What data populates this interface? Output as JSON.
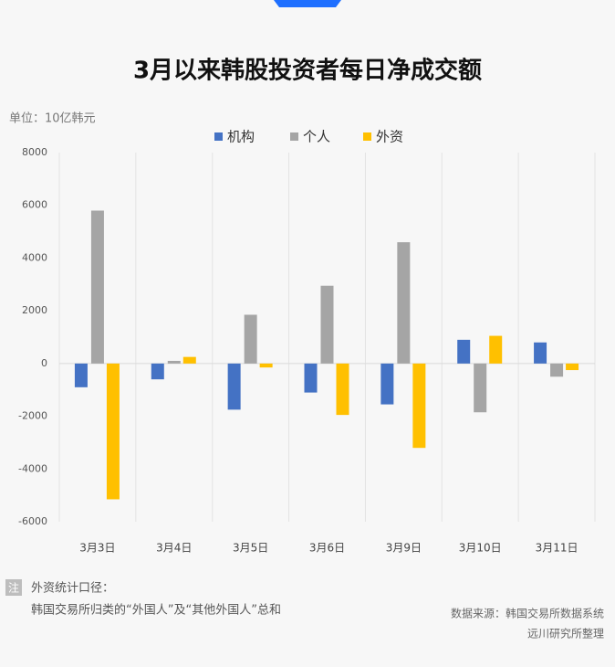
{
  "chart_data": {
    "type": "bar",
    "title": "3月以来韩股投资者每日净成交额",
    "unit_label": "单位：10亿韩元",
    "categories": [
      "3月3日",
      "3月4日",
      "3月5日",
      "3月6日",
      "3月9日",
      "3月10日",
      "3月11日"
    ],
    "series": [
      {
        "name": "机构",
        "color": "#4472c4",
        "values": [
          -900,
          -600,
          -1750,
          -1100,
          -1550,
          900,
          800
        ]
      },
      {
        "name": "个人",
        "color": "#a5a5a5",
        "values": [
          5800,
          100,
          1850,
          2950,
          4600,
          -1850,
          -500
        ]
      },
      {
        "name": "外资",
        "color": "#ffc000",
        "values": [
          -5150,
          250,
          -150,
          -1950,
          -3200,
          1050,
          -250
        ]
      }
    ],
    "ylim": [
      -6000,
      8000
    ],
    "yticks": [
      -6000,
      -4000,
      -2000,
      0,
      2000,
      4000,
      6000,
      8000
    ],
    "legend": "top",
    "note_tag": "注",
    "note_lines": [
      "外资统计口径：",
      "韩国交易所归类的“外国人”及“其他外国人”总和"
    ],
    "source_lines": [
      "数据来源：韩国交易所数据系统",
      "远川研究所整理"
    ]
  }
}
